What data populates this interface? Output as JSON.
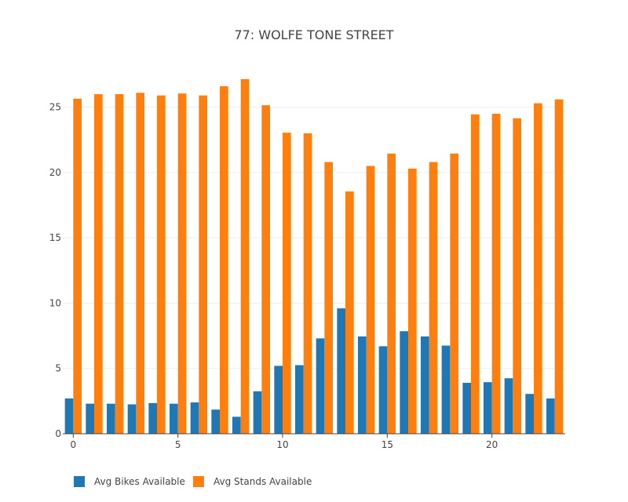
{
  "chart_data": {
    "type": "bar",
    "title": "77: WOLFE TONE STREET",
    "xlabel": "",
    "ylabel": "",
    "x": [
      0,
      1,
      2,
      3,
      4,
      5,
      6,
      7,
      8,
      9,
      10,
      11,
      12,
      13,
      14,
      15,
      16,
      17,
      18,
      19,
      20,
      21,
      22,
      23
    ],
    "xlim": [
      -0.5,
      23.5
    ],
    "ylim": [
      0,
      27.2
    ],
    "xticks": [
      0,
      5,
      10,
      15,
      20
    ],
    "yticks": [
      0,
      5,
      10,
      15,
      20,
      25
    ],
    "grid": true,
    "legend_position": "bottom-left",
    "series": [
      {
        "name": "Avg Bikes Available",
        "color": "#1f77b4",
        "values": [
          2.7,
          2.3,
          2.3,
          2.25,
          2.35,
          2.3,
          2.4,
          1.85,
          1.3,
          3.25,
          5.2,
          5.25,
          7.3,
          9.6,
          7.45,
          6.7,
          7.85,
          7.45,
          6.75,
          3.9,
          3.95,
          4.25,
          3.05,
          2.7
        ]
      },
      {
        "name": "Avg Stands Available",
        "color": "#ff7f0e",
        "values": [
          25.65,
          26.0,
          26.0,
          26.1,
          25.9,
          26.05,
          25.9,
          26.6,
          27.15,
          25.15,
          23.05,
          23.0,
          20.8,
          18.55,
          20.5,
          21.45,
          20.3,
          20.8,
          21.45,
          24.45,
          24.5,
          24.15,
          25.3,
          25.6
        ]
      }
    ]
  }
}
